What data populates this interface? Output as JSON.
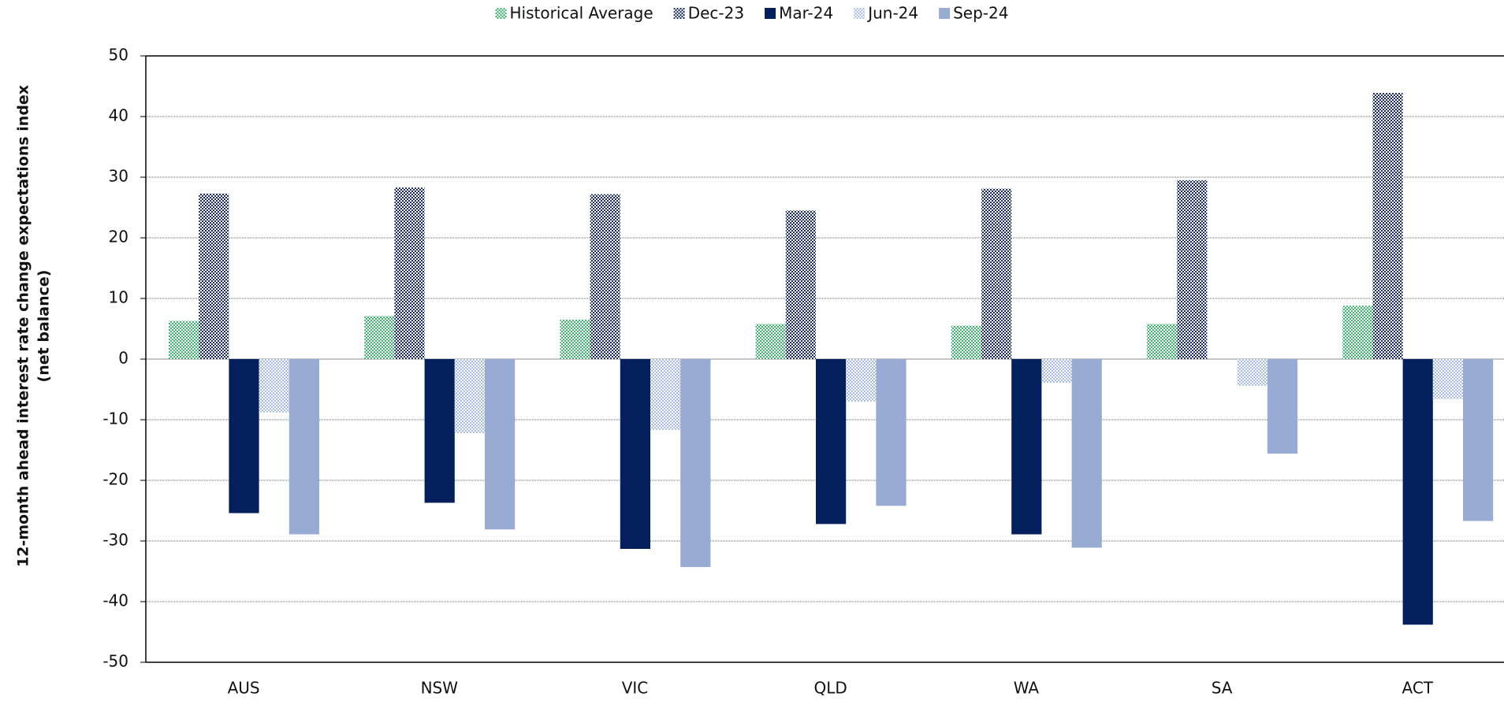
{
  "chart_data": {
    "type": "bar",
    "y_label": [
      "12-month ahead interest rate change expectations index",
      "(net balance)"
    ],
    "categories": [
      "AUS",
      "NSW",
      "VIC",
      "QLD",
      "WA",
      "SA",
      "ACT"
    ],
    "series": [
      {
        "name": "Historical Average",
        "color": "#3cb46e",
        "pattern": "checker",
        "values": [
          6.3,
          7.1,
          6.5,
          5.8,
          5.5,
          5.8,
          8.8
        ]
      },
      {
        "name": "Dec-23",
        "color": "#1a2d66",
        "pattern": "checker",
        "values": [
          27.3,
          28.3,
          27.2,
          24.5,
          28.1,
          29.5,
          43.9
        ]
      },
      {
        "name": "Mar-24",
        "color": "#03205c",
        "values": [
          -25.4,
          -23.7,
          -31.3,
          -27.2,
          -28.9,
          null,
          -43.8
        ]
      },
      {
        "name": "Jun-24",
        "color": "#a7bde6",
        "pattern": "checker",
        "values": [
          -8.8,
          -12.2,
          -11.7,
          -7.0,
          -3.9,
          -4.4,
          -6.6
        ]
      },
      {
        "name": "Sep-24",
        "color": "#97abd3",
        "values": [
          -28.9,
          -28.1,
          -34.3,
          -24.2,
          -31.1,
          -15.6,
          -26.7
        ]
      }
    ],
    "ylim": [
      -50,
      50
    ],
    "yticks": [
      -50,
      -40,
      -30,
      -20,
      -10,
      0,
      10,
      20,
      30,
      40,
      50
    ],
    "grid": true,
    "legend": "top"
  }
}
